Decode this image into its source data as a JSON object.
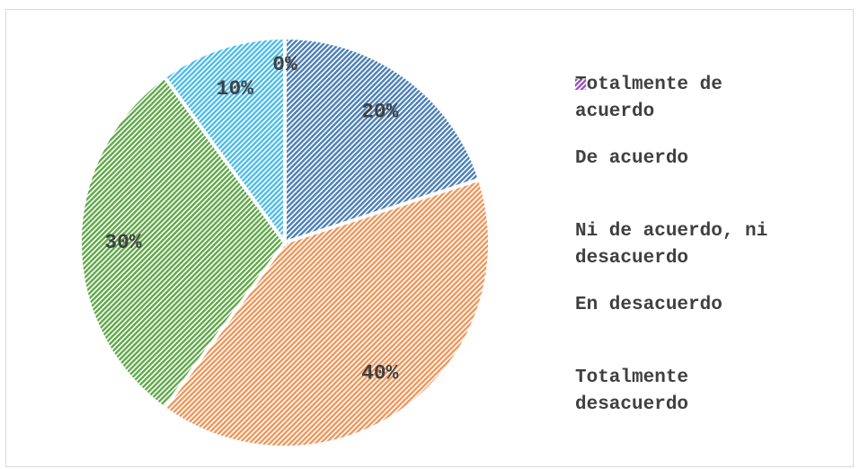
{
  "chart_data": {
    "type": "pie",
    "categories": [
      "Totalmente de acuerdo",
      "De acuerdo",
      "Ni de acuerdo, ni desacuerdo",
      "En desacuerdo",
      "Totalmente desacuerdo"
    ],
    "values": [
      20,
      40,
      30,
      10,
      0
    ],
    "value_labels": [
      "20%",
      "40%",
      "30%",
      "10%",
      "0%"
    ],
    "colors": [
      "#4a7fb8",
      "#f0965a",
      "#5fa848",
      "#4cbcec",
      "#9b4fc0"
    ],
    "legend": "right"
  }
}
